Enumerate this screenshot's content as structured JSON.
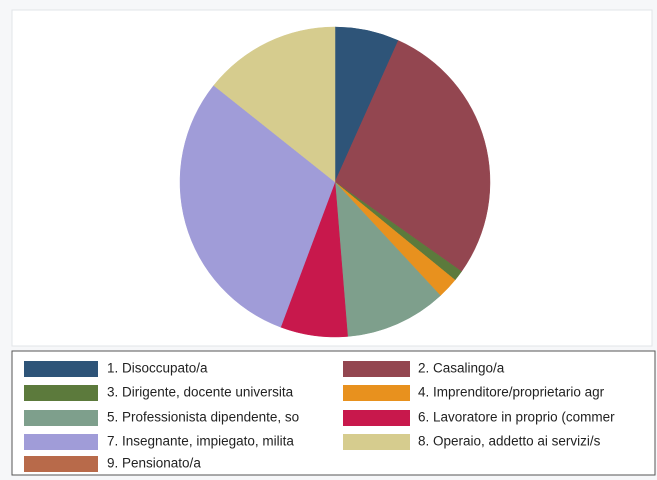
{
  "chart_data": {
    "type": "pie",
    "categories": [
      "1. Disoccupato/a",
      "2. Casalingo/a",
      "3. Dirigente, docente universita",
      "4. Imprenditore/proprietario agr",
      "5. Professionista dipendente, so",
      "6. Lavoratore in proprio (commer",
      "7. Insegnante, impiegato, milita",
      "8. Operaio, addetto ai servizi/s",
      "9. Pensionato/a"
    ],
    "values": [
      6.7,
      28.1,
      1.1,
      2.2,
      10.6,
      7.0,
      30.0,
      14.3,
      0
    ],
    "colors": [
      "#2e5478",
      "#934650",
      "#5c7a3c",
      "#e8911e",
      "#7e9f8c",
      "#c8184c",
      "#a09cd8",
      "#d6cc8e",
      "#b86a4a"
    ]
  }
}
